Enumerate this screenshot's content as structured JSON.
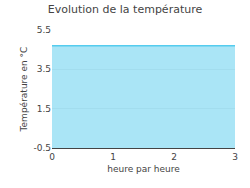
{
  "chart_data": {
    "type": "area",
    "title": "Evolution de la température",
    "xlabel": "heure par heure",
    "ylabel": "Température en °C",
    "x": [
      0,
      1,
      2,
      3
    ],
    "values": [
      4.7,
      4.7,
      4.7,
      4.7
    ],
    "color": "#55ccee",
    "xlim": [
      0,
      3
    ],
    "xticks": [
      0,
      1,
      2,
      3
    ],
    "ylim": [
      -0.5,
      5.5
    ],
    "yticks": [
      -0.5,
      1.5,
      3.5,
      5.5
    ],
    "grid": "y"
  }
}
